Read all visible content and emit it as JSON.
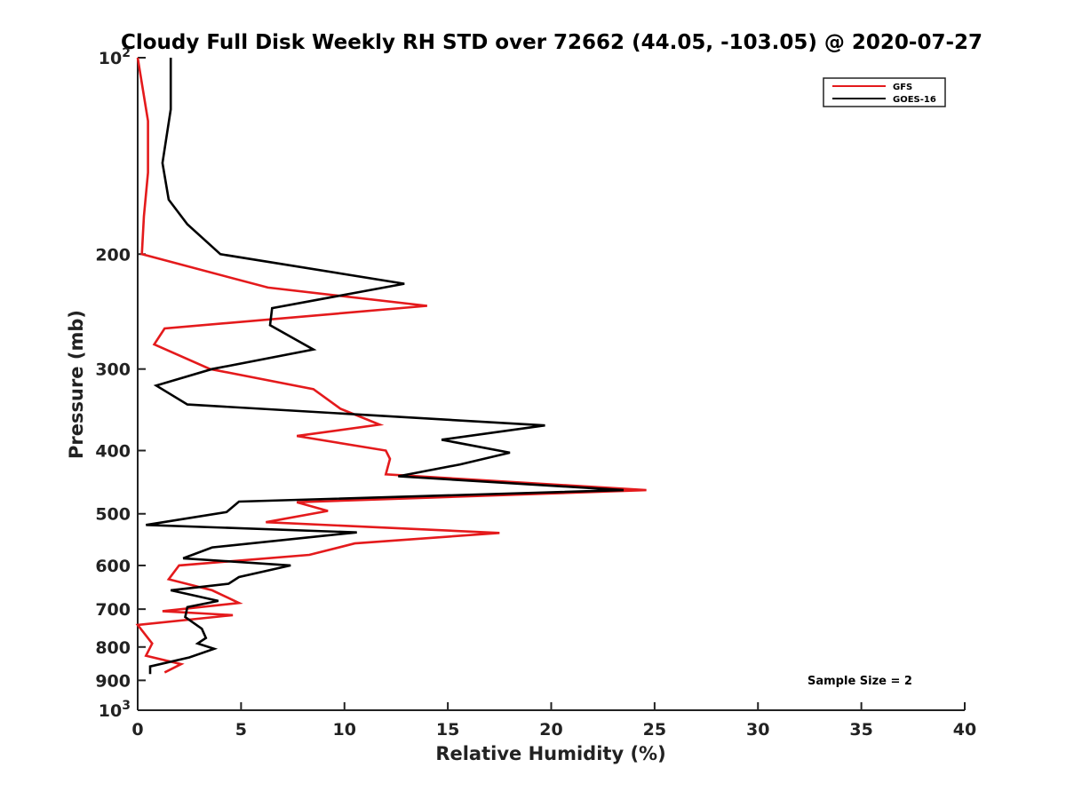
{
  "chart_data": {
    "type": "line",
    "title": "Cloudy Full Disk Weekly RH STD over 72662 (44.05, -103.05) @ 2020-07-27",
    "xlabel": "Relative Humidity (%)",
    "ylabel": "Pressure (mb)",
    "xlim": [
      0,
      40
    ],
    "ylim": [
      100,
      1000
    ],
    "y_scale": "log",
    "y_reversed": true,
    "x_ticks": [
      "0",
      "5",
      "10",
      "15",
      "20",
      "25",
      "30",
      "35",
      "40"
    ],
    "y_ticks": [
      {
        "value": 100,
        "label": "10",
        "sup": "2"
      },
      {
        "value": 200,
        "label": "200",
        "sup": ""
      },
      {
        "value": 300,
        "label": "300",
        "sup": ""
      },
      {
        "value": 400,
        "label": "400",
        "sup": ""
      },
      {
        "value": 500,
        "label": "500",
        "sup": ""
      },
      {
        "value": 600,
        "label": "600",
        "sup": ""
      },
      {
        "value": 700,
        "label": "700",
        "sup": ""
      },
      {
        "value": 800,
        "label": "800",
        "sup": ""
      },
      {
        "value": 900,
        "label": "900",
        "sup": ""
      },
      {
        "value": 1000,
        "label": "10",
        "sup": "3"
      }
    ],
    "grid": false,
    "legend_position": "top-right",
    "annotation": "Sample Size = 2",
    "series": [
      {
        "name": "GFS",
        "color": "#e41a1c",
        "points": [
          [
            0,
            100
          ],
          [
            0.5,
            125
          ],
          [
            0.5,
            150
          ],
          [
            0.3,
            175
          ],
          [
            0.2,
            200
          ],
          [
            6.3,
            225
          ],
          [
            14,
            240
          ],
          [
            1.3,
            260
          ],
          [
            0.8,
            275
          ],
          [
            3.5,
            300
          ],
          [
            8.5,
            322
          ],
          [
            9.8,
            345
          ],
          [
            11.7,
            365
          ],
          [
            7.7,
            380
          ],
          [
            12,
            400
          ],
          [
            12.2,
            412
          ],
          [
            12,
            435
          ],
          [
            24.6,
            460
          ],
          [
            7.7,
            480
          ],
          [
            9.2,
            495
          ],
          [
            6.2,
            515
          ],
          [
            17.5,
            535
          ],
          [
            10.5,
            555
          ],
          [
            8.3,
            578
          ],
          [
            2,
            600
          ],
          [
            1.5,
            630
          ],
          [
            3.6,
            655
          ],
          [
            4.9,
            685
          ],
          [
            1.2,
            705
          ],
          [
            4.6,
            715
          ],
          [
            0,
            740
          ],
          [
            0.7,
            790
          ],
          [
            0.4,
            825
          ],
          [
            2.1,
            850
          ],
          [
            1.3,
            875
          ]
        ]
      },
      {
        "name": "GOES-16",
        "color": "#000000",
        "points": [
          [
            1.6,
            100
          ],
          [
            1.6,
            120
          ],
          [
            1.2,
            145
          ],
          [
            1.5,
            165
          ],
          [
            2.4,
            180
          ],
          [
            4,
            200
          ],
          [
            12.9,
            222
          ],
          [
            6.5,
            242
          ],
          [
            6.4,
            257
          ],
          [
            8.5,
            280
          ],
          [
            3.6,
            300
          ],
          [
            0.9,
            318
          ],
          [
            2.4,
            340
          ],
          [
            19.7,
            366
          ],
          [
            14.7,
            385
          ],
          [
            18,
            403
          ],
          [
            15.6,
            420
          ],
          [
            12.6,
            438
          ],
          [
            23.5,
            460
          ],
          [
            4.9,
            479
          ],
          [
            4.3,
            497
          ],
          [
            0.4,
            520
          ],
          [
            10.6,
            534
          ],
          [
            3.6,
            563
          ],
          [
            2.2,
            585
          ],
          [
            7.4,
            600
          ],
          [
            4.9,
            625
          ],
          [
            4.4,
            640
          ],
          [
            1.6,
            655
          ],
          [
            3.9,
            680
          ],
          [
            2.4,
            695
          ],
          [
            2.3,
            720
          ],
          [
            3.1,
            750
          ],
          [
            3.3,
            775
          ],
          [
            2.9,
            790
          ],
          [
            3.7,
            805
          ],
          [
            2.5,
            830
          ],
          [
            0.6,
            857
          ],
          [
            0.6,
            880
          ]
        ]
      }
    ]
  }
}
